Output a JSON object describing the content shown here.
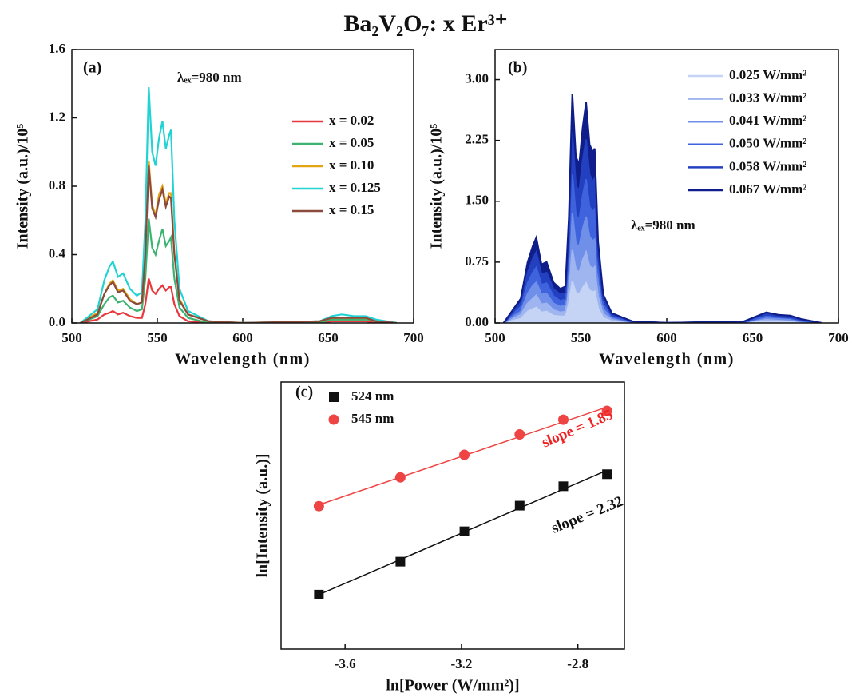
{
  "title": "Ba₂V₂O₇: x Er³⁺",
  "chart_data": [
    {
      "type": "line",
      "panel_label": "(a)",
      "x_label": "Wavelength (nm)",
      "y_label": "Intensity (a.u.)/10⁵",
      "annotations": [
        {
          "text": "λₑₓ=980 nm",
          "color": "#111111"
        }
      ],
      "legend": "upper right",
      "xlim": [
        500,
        700
      ],
      "xticks": [
        500,
        550,
        600,
        650,
        700
      ],
      "ylim": [
        0,
        1.6
      ],
      "yticks": [
        {
          "value": 0,
          "label": "0.0"
        },
        0.4,
        0.8,
        1.2,
        1.6
      ],
      "x": [
        505,
        515,
        519,
        522,
        524,
        527,
        530,
        534,
        538,
        541,
        543,
        545,
        547,
        549,
        551,
        553,
        555,
        557,
        558,
        560,
        563,
        568,
        580,
        600,
        645,
        652,
        658,
        665,
        672,
        678,
        690
      ],
      "series": [
        {
          "name": "x = 0.02",
          "color": "#e8383d",
          "values": [
            0,
            0.02,
            0.05,
            0.06,
            0.07,
            0.05,
            0.06,
            0.04,
            0.03,
            0.03,
            0.11,
            0.26,
            0.19,
            0.17,
            0.2,
            0.22,
            0.19,
            0.21,
            0.21,
            0.11,
            0.04,
            0.01,
            0,
            0,
            0,
            0.01,
            0.01,
            0.01,
            0.01,
            0,
            0
          ]
        },
        {
          "name": "x = 0.05",
          "color": "#3cb371",
          "values": [
            0,
            0.04,
            0.11,
            0.15,
            0.16,
            0.12,
            0.13,
            0.09,
            0.07,
            0.08,
            0.26,
            0.61,
            0.44,
            0.4,
            0.48,
            0.55,
            0.45,
            0.48,
            0.5,
            0.26,
            0.09,
            0.03,
            0,
            0,
            0,
            0.02,
            0.02,
            0.02,
            0.02,
            0.01,
            0
          ]
        },
        {
          "name": "x = 0.10",
          "color": "#e2a514",
          "values": [
            0,
            0.06,
            0.17,
            0.23,
            0.25,
            0.19,
            0.2,
            0.14,
            0.11,
            0.12,
            0.41,
            0.95,
            0.69,
            0.63,
            0.75,
            0.8,
            0.7,
            0.76,
            0.76,
            0.41,
            0.14,
            0.05,
            0.01,
            0,
            0.01,
            0.03,
            0.03,
            0.03,
            0.03,
            0.01,
            0
          ]
        },
        {
          "name": "x = 0.125",
          "color": "#22d3d3",
          "values": [
            0,
            0.08,
            0.25,
            0.33,
            0.36,
            0.27,
            0.29,
            0.2,
            0.16,
            0.18,
            0.6,
            1.38,
            1.0,
            0.92,
            1.08,
            1.18,
            1.02,
            1.1,
            1.13,
            0.6,
            0.2,
            0.07,
            0.01,
            0,
            0.01,
            0.04,
            0.05,
            0.04,
            0.04,
            0.02,
            0
          ]
        },
        {
          "name": "x = 0.15",
          "color": "#8b4a3c",
          "values": [
            0,
            0.05,
            0.17,
            0.22,
            0.24,
            0.18,
            0.19,
            0.13,
            0.11,
            0.12,
            0.4,
            0.92,
            0.67,
            0.62,
            0.72,
            0.78,
            0.68,
            0.74,
            0.73,
            0.4,
            0.13,
            0.05,
            0.01,
            0,
            0.01,
            0.03,
            0.03,
            0.03,
            0.03,
            0.01,
            0
          ]
        }
      ]
    },
    {
      "type": "line",
      "fill": true,
      "panel_label": "(b)",
      "x_label": "Wavelength (nm)",
      "y_label": "Intensity (a.u.)/10⁵",
      "annotations": [
        {
          "text": "λₑₓ=980 nm",
          "color": "#111111"
        }
      ],
      "legend": "upper right",
      "xlim": [
        500,
        700
      ],
      "xticks": [
        500,
        550,
        600,
        650,
        700
      ],
      "ylim": [
        0,
        3.37
      ],
      "yticks": [
        {
          "value": 0,
          "label": "0.00"
        },
        0.75,
        {
          "value": 1.5,
          "label": "1.50"
        },
        2.25,
        {
          "value": 3,
          "label": "3.00"
        }
      ],
      "x": [
        505,
        515,
        519,
        522,
        524,
        527,
        530,
        534,
        538,
        541,
        543,
        545,
        547,
        549,
        551,
        553,
        555,
        557,
        558,
        560,
        563,
        568,
        580,
        600,
        645,
        652,
        658,
        665,
        672,
        678,
        690
      ],
      "series": [
        {
          "name": "0.025 W/mm²",
          "color": "#c5d3f5",
          "values": [
            0,
            0.05,
            0.14,
            0.17,
            0.19,
            0.13,
            0.14,
            0.09,
            0.08,
            0.08,
            0.23,
            0.51,
            0.37,
            0.35,
            0.43,
            0.49,
            0.4,
            0.38,
            0.39,
            0.18,
            0.06,
            0.02,
            0,
            0,
            0,
            0.01,
            0.02,
            0.02,
            0.02,
            0.01,
            0
          ]
        },
        {
          "name": "0.033 W/mm²",
          "color": "#9fb5ef",
          "values": [
            0,
            0.1,
            0.24,
            0.3,
            0.34,
            0.23,
            0.24,
            0.16,
            0.13,
            0.14,
            0.42,
            0.9,
            0.66,
            0.62,
            0.77,
            0.87,
            0.7,
            0.67,
            0.69,
            0.32,
            0.11,
            0.04,
            0.01,
            0,
            0.01,
            0.03,
            0.04,
            0.03,
            0.03,
            0.02,
            0
          ]
        },
        {
          "name": "0.041 W/mm²",
          "color": "#6f8fe8",
          "values": [
            0,
            0.14,
            0.36,
            0.46,
            0.5,
            0.35,
            0.36,
            0.24,
            0.2,
            0.22,
            0.62,
            1.35,
            0.98,
            0.94,
            1.15,
            1.31,
            1.06,
            1.01,
            1.03,
            0.48,
            0.17,
            0.06,
            0.01,
            0,
            0.01,
            0.04,
            0.06,
            0.05,
            0.04,
            0.02,
            0
          ]
        },
        {
          "name": "0.050 W/mm²",
          "color": "#3e63dd",
          "values": [
            0,
            0.2,
            0.49,
            0.62,
            0.68,
            0.47,
            0.49,
            0.33,
            0.27,
            0.29,
            0.85,
            1.83,
            1.33,
            1.27,
            1.56,
            1.77,
            1.43,
            1.37,
            1.4,
            0.65,
            0.23,
            0.08,
            0.01,
            0,
            0.01,
            0.05,
            0.08,
            0.07,
            0.06,
            0.03,
            0
          ]
        },
        {
          "name": "0.058 W/mm²",
          "color": "#2240c0",
          "values": [
            0,
            0.25,
            0.62,
            0.79,
            0.87,
            0.6,
            0.62,
            0.42,
            0.35,
            0.37,
            1.08,
            2.34,
            1.7,
            1.62,
            1.99,
            2.26,
            1.83,
            1.74,
            1.78,
            0.83,
            0.29,
            0.1,
            0.02,
            0,
            0.02,
            0.07,
            0.11,
            0.08,
            0.07,
            0.04,
            0
          ]
        },
        {
          "name": "0.067 W/mm²",
          "color": "#0f1e8a",
          "values": [
            0,
            0.3,
            0.75,
            0.95,
            1.05,
            0.72,
            0.75,
            0.5,
            0.42,
            0.45,
            1.3,
            2.82,
            2.05,
            1.95,
            2.4,
            2.72,
            2.2,
            2.1,
            2.15,
            1.0,
            0.35,
            0.12,
            0.02,
            0,
            0.02,
            0.08,
            0.13,
            0.1,
            0.09,
            0.05,
            0
          ]
        }
      ]
    },
    {
      "type": "scatter",
      "fit_lines": true,
      "panel_label": "(c)",
      "x_label": "ln[Power (W/mm²)]",
      "y_label": "ln[Intensity (a.u.)]",
      "annotations": [
        {
          "text": "slope = 1.85",
          "color": "#ee2222"
        },
        {
          "text": "slope = 2.32",
          "color": "#111111"
        }
      ],
      "legend": "upper left",
      "xlim": [
        -3.82,
        -2.64
      ],
      "xticks": [
        -3.6,
        -3.2,
        -2.8
      ],
      "ylim": [
        5,
        10.1
      ],
      "x": [
        -3.69,
        -3.41,
        -3.19,
        -3.0,
        -2.85,
        -2.7
      ],
      "series": [
        {
          "name": "524 nm",
          "color": "#111111",
          "marker": "square",
          "values": [
            6.04,
            6.67,
            7.25,
            7.74,
            8.11,
            8.34
          ]
        },
        {
          "name": "545 nm",
          "color": "#ee4444",
          "marker": "circle",
          "values": [
            7.73,
            8.28,
            8.71,
            9.1,
            9.38,
            9.55
          ]
        }
      ]
    }
  ]
}
